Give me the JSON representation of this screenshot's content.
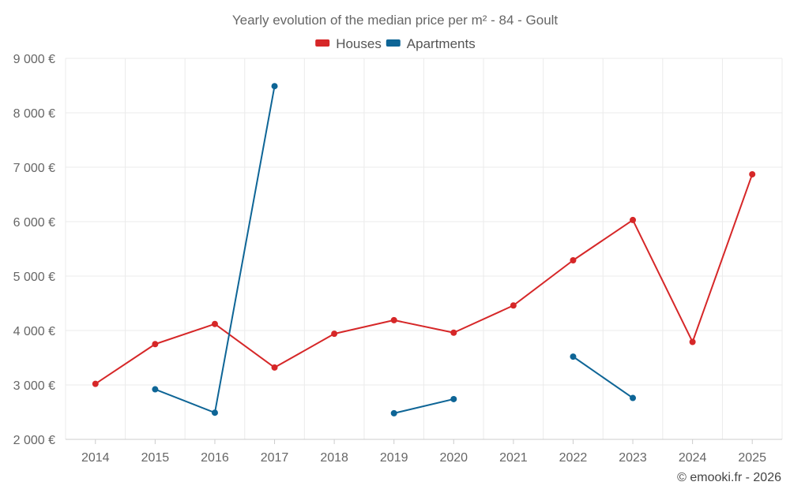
{
  "chart_data": {
    "type": "line",
    "title": "Yearly evolution of the median price per m² - 84 - Goult",
    "credit": "© emooki.fr - 2026",
    "categories": [
      "2014",
      "2015",
      "2016",
      "2017",
      "2018",
      "2019",
      "2020",
      "2021",
      "2022",
      "2023",
      "2024",
      "2025"
    ],
    "ylim": [
      2000,
      9000
    ],
    "yticks": [
      2000,
      3000,
      4000,
      5000,
      6000,
      7000,
      8000,
      9000
    ],
    "ytick_labels": [
      "2 000 €",
      "3 000 €",
      "4 000 €",
      "5 000 €",
      "6 000 €",
      "7 000 €",
      "8 000 €",
      "9 000 €"
    ],
    "grid": true,
    "legend_position": "top-center",
    "series": [
      {
        "name": "Houses",
        "color": "#d62728",
        "values": [
          3020,
          3750,
          4120,
          3320,
          3940,
          4190,
          3960,
          4460,
          5290,
          6030,
          3790,
          6870
        ]
      },
      {
        "name": "Apartments",
        "color": "#0e6596",
        "values": [
          null,
          2920,
          2490,
          8490,
          null,
          2480,
          2740,
          null,
          3520,
          2760,
          null,
          null
        ]
      }
    ]
  }
}
